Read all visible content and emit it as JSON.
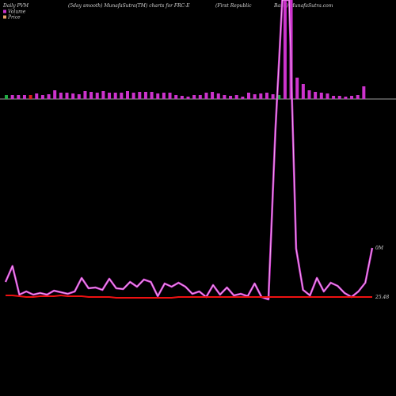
{
  "header": {
    "left": "Daily PVM",
    "mid": "(5day smooth) MunafaSutra(TM) charts for FRC-E",
    "right_line1": "(First Republic",
    "right_line2": "Bank) MunafaSutra.com"
  },
  "chart_data": {
    "type": "bar+line",
    "legend": [
      {
        "name": "Volume",
        "color": "#cc33cc"
      },
      {
        "name": "Price",
        "color": "#e8a06a"
      }
    ],
    "labels": {
      "volume_axis": "0M",
      "price_axis": "25.48"
    },
    "volume_bars": [
      {
        "v": 5,
        "c": "green"
      },
      {
        "v": 5,
        "c": "pink"
      },
      {
        "v": 5,
        "c": "pink"
      },
      {
        "v": 5,
        "c": "pink"
      },
      {
        "v": 5,
        "c": "red"
      },
      {
        "v": 7,
        "c": "pink"
      },
      {
        "v": 5,
        "c": "pink"
      },
      {
        "v": 6,
        "c": "pink"
      },
      {
        "v": 11,
        "c": "pink"
      },
      {
        "v": 8,
        "c": "pink"
      },
      {
        "v": 8,
        "c": "pink"
      },
      {
        "v": 7,
        "c": "pink"
      },
      {
        "v": 6,
        "c": "pink"
      },
      {
        "v": 10,
        "c": "pink"
      },
      {
        "v": 9,
        "c": "pink"
      },
      {
        "v": 8,
        "c": "pink"
      },
      {
        "v": 10,
        "c": "pink"
      },
      {
        "v": 8,
        "c": "pink"
      },
      {
        "v": 8,
        "c": "pink"
      },
      {
        "v": 8,
        "c": "pink"
      },
      {
        "v": 10,
        "c": "pink"
      },
      {
        "v": 8,
        "c": "pink"
      },
      {
        "v": 9,
        "c": "pink"
      },
      {
        "v": 9,
        "c": "pink"
      },
      {
        "v": 9,
        "c": "pink"
      },
      {
        "v": 7,
        "c": "pink"
      },
      {
        "v": 8,
        "c": "pink"
      },
      {
        "v": 8,
        "c": "pink"
      },
      {
        "v": 5,
        "c": "pink"
      },
      {
        "v": 4,
        "c": "pink"
      },
      {
        "v": 3,
        "c": "pink"
      },
      {
        "v": 5,
        "c": "pink"
      },
      {
        "v": 5,
        "c": "pink"
      },
      {
        "v": 8,
        "c": "pink"
      },
      {
        "v": 9,
        "c": "pink"
      },
      {
        "v": 7,
        "c": "pink"
      },
      {
        "v": 5,
        "c": "pink"
      },
      {
        "v": 4,
        "c": "pink"
      },
      {
        "v": 5,
        "c": "pink"
      },
      {
        "v": 3,
        "c": "pink"
      },
      {
        "v": 8,
        "c": "pink"
      },
      {
        "v": 6,
        "c": "pink"
      },
      {
        "v": 7,
        "c": "pink"
      },
      {
        "v": 8,
        "c": "pink"
      },
      {
        "v": 6,
        "c": "pink"
      },
      {
        "v": 5,
        "c": "green"
      },
      {
        "v": 125,
        "c": "pink"
      },
      {
        "v": 125,
        "c": "pink"
      },
      {
        "v": 27,
        "c": "pink"
      },
      {
        "v": 19,
        "c": "pink"
      },
      {
        "v": 11,
        "c": "pink"
      },
      {
        "v": 9,
        "c": "pink"
      },
      {
        "v": 8,
        "c": "pink"
      },
      {
        "v": 7,
        "c": "pink"
      },
      {
        "v": 4,
        "c": "pink"
      },
      {
        "v": 4,
        "c": "pink"
      },
      {
        "v": 3,
        "c": "pink"
      },
      {
        "v": 4,
        "c": "pink"
      },
      {
        "v": 5,
        "c": "pink"
      },
      {
        "v": 16,
        "c": "pink"
      }
    ],
    "volume_line": [
      356,
      336,
      372,
      368,
      372,
      370,
      372,
      367,
      369,
      371,
      368,
      351,
      364,
      363,
      366,
      352,
      364,
      365,
      356,
      362,
      353,
      356,
      374,
      358,
      362,
      357,
      362,
      371,
      368,
      375,
      360,
      372,
      363,
      373,
      371,
      374,
      358,
      375,
      378,
      165,
      0,
      0,
      314,
      366,
      373,
      351,
      368,
      357,
      361,
      370,
      375,
      368,
      357,
      313
    ],
    "price_line": [
      373,
      373,
      374,
      375,
      375,
      374,
      374,
      374,
      373,
      374,
      374,
      374,
      375,
      375,
      375,
      375,
      376,
      376,
      376,
      376,
      376,
      376,
      376,
      376,
      376,
      375,
      375,
      375,
      375,
      375,
      375,
      375,
      375,
      375,
      375,
      375,
      375,
      375,
      375,
      375,
      375,
      375,
      375,
      375,
      375,
      375,
      375,
      375,
      375,
      375,
      375,
      375,
      375,
      375
    ]
  }
}
